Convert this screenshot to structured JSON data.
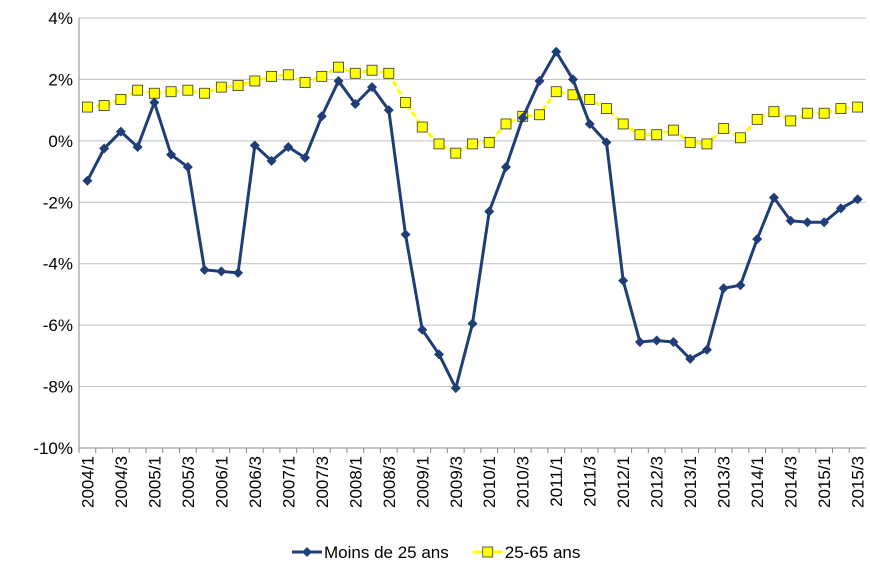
{
  "chart_data": {
    "type": "line",
    "categories": [
      "2004/1",
      null,
      "2004/3",
      null,
      "2005/1",
      null,
      "2005/3",
      null,
      "2006/1",
      null,
      "2006/3",
      null,
      "2007/1",
      null,
      "2007/3",
      null,
      "2008/1",
      null,
      "2008/3",
      null,
      "2009/1",
      null,
      "2009/3",
      null,
      "2010/1",
      null,
      "2010/3",
      null,
      "2011/1",
      null,
      "2011/3",
      null,
      "2012/1",
      null,
      "2012/3",
      null,
      "2013/1",
      null,
      "2013/3",
      null,
      "2014/1",
      null,
      "2014/3",
      null,
      "2015/1",
      null,
      "2015/3"
    ],
    "series": [
      {
        "name": "Moins de 25 ans",
        "color": "#1f3e78",
        "marker": "diamond",
        "values": [
          -1.3,
          -0.25,
          0.3,
          -0.2,
          1.25,
          -0.45,
          -0.85,
          -4.2,
          -4.25,
          -4.3,
          -0.15,
          -0.65,
          -0.2,
          -0.55,
          0.8,
          1.95,
          1.2,
          1.75,
          1.0,
          -3.05,
          -6.15,
          -6.95,
          -8.05,
          -5.95,
          -2.3,
          -0.85,
          0.75,
          1.95,
          2.9,
          2.0,
          0.55,
          -0.05,
          -4.55,
          -6.55,
          -6.5,
          -6.55,
          -7.1,
          -6.8,
          -4.8,
          -4.7,
          -3.2,
          -1.85,
          -2.6,
          -2.65,
          -2.65,
          -2.2,
          -1.9
        ]
      },
      {
        "name": "25-65 ans",
        "color": "#ffff00",
        "marker": "square",
        "values": [
          1.1,
          1.15,
          1.35,
          1.65,
          1.55,
          1.6,
          1.65,
          1.55,
          1.75,
          1.8,
          1.95,
          2.1,
          2.15,
          1.9,
          2.1,
          2.4,
          2.2,
          2.3,
          2.2,
          1.25,
          0.45,
          -0.1,
          -0.4,
          -0.1,
          -0.05,
          0.55,
          0.8,
          0.85,
          1.6,
          1.5,
          1.35,
          1.05,
          0.55,
          0.2,
          0.2,
          0.35,
          -0.05,
          -0.1,
          0.4,
          0.1,
          0.7,
          0.95,
          0.65,
          0.9,
          0.9,
          1.05,
          1.1
        ]
      }
    ],
    "ylim": [
      -10,
      4
    ],
    "yticks": [
      {
        "value": -10,
        "label": "-10%"
      },
      {
        "value": -8,
        "label": "-8%"
      },
      {
        "value": -6,
        "label": "-6%"
      },
      {
        "value": -4,
        "label": "-4%"
      },
      {
        "value": -2,
        "label": "-2%"
      },
      {
        "value": 0,
        "label": "0%"
      },
      {
        "value": 2,
        "label": "2%"
      },
      {
        "value": 4,
        "label": "4%"
      }
    ],
    "grid": true,
    "legend": "bottom"
  }
}
